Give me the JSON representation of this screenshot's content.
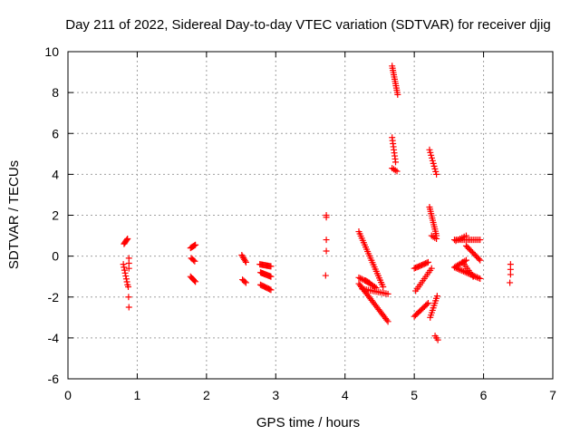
{
  "chart_data": {
    "type": "scatter",
    "title": "Day 211 of 2022, Sidereal Day-to-day VTEC variation (SDTVAR) for receiver djig",
    "xlabel": "GPS time / hours",
    "ylabel": "SDTVAR / TECUs",
    "xlim": [
      0,
      7
    ],
    "ylim": [
      -6,
      10
    ],
    "xticks": [
      "0",
      "1",
      "2",
      "3",
      "4",
      "5",
      "6",
      "7"
    ],
    "yticks": [
      "-6",
      "-4",
      "-2",
      "0",
      "2",
      "4",
      "6",
      "8",
      "10"
    ],
    "grid": true,
    "marker": "plus",
    "color": "#ff0000",
    "segments": [
      {
        "x0": 0.81,
        "y0": 0.6,
        "x1": 0.86,
        "y1": 0.85,
        "n": 6
      },
      {
        "x0": 0.8,
        "y0": -0.4,
        "x1": 0.86,
        "y1": -1.4,
        "n": 8
      },
      {
        "x0": 0.88,
        "y0": -0.1,
        "x1": 0.88,
        "y1": -0.6,
        "n": 3
      },
      {
        "x0": 0.87,
        "y0": -1.5,
        "x1": 0.88,
        "y1": -2.5,
        "n": 3
      },
      {
        "x0": 1.77,
        "y0": 0.4,
        "x1": 1.84,
        "y1": 0.55,
        "n": 6
      },
      {
        "x0": 1.78,
        "y0": -0.1,
        "x1": 1.83,
        "y1": -0.25,
        "n": 4
      },
      {
        "x0": 1.77,
        "y0": -1.0,
        "x1": 1.84,
        "y1": -1.25,
        "n": 6
      },
      {
        "x0": 2.51,
        "y0": 0.05,
        "x1": 2.57,
        "y1": -0.3,
        "n": 6
      },
      {
        "x0": 2.52,
        "y0": -1.15,
        "x1": 2.57,
        "y1": -1.3,
        "n": 4
      },
      {
        "x0": 2.77,
        "y0": -0.4,
        "x1": 2.93,
        "y1": -0.5,
        "n": 12
      },
      {
        "x0": 2.78,
        "y0": -0.8,
        "x1": 2.93,
        "y1": -1.0,
        "n": 12
      },
      {
        "x0": 2.78,
        "y0": -1.4,
        "x1": 2.93,
        "y1": -1.65,
        "n": 10
      },
      {
        "x0": 3.73,
        "y0": 2.0,
        "x1": 3.73,
        "y1": 1.9,
        "n": 2
      },
      {
        "x0": 3.73,
        "y0": 0.8,
        "x1": 3.73,
        "y1": 0.8,
        "n": 1
      },
      {
        "x0": 3.73,
        "y0": 0.25,
        "x1": 3.73,
        "y1": 0.25,
        "n": 1
      },
      {
        "x0": 3.72,
        "y0": -0.95,
        "x1": 3.72,
        "y1": -0.95,
        "n": 1
      },
      {
        "x0": 4.2,
        "y0": 1.2,
        "x1": 4.55,
        "y1": -1.5,
        "n": 26
      },
      {
        "x0": 4.2,
        "y0": -1.05,
        "x1": 4.35,
        "y1": -1.3,
        "n": 8
      },
      {
        "x0": 4.2,
        "y0": -1.35,
        "x1": 4.62,
        "y1": -3.2,
        "n": 26
      },
      {
        "x0": 4.25,
        "y0": -1.6,
        "x1": 4.62,
        "y1": -1.85,
        "n": 14
      },
      {
        "x0": 4.3,
        "y0": -1.2,
        "x1": 4.45,
        "y1": -1.55,
        "n": 8
      },
      {
        "x0": 4.68,
        "y0": 9.3,
        "x1": 4.76,
        "y1": 7.9,
        "n": 14
      },
      {
        "x0": 4.68,
        "y0": 5.8,
        "x1": 4.73,
        "y1": 4.6,
        "n": 9
      },
      {
        "x0": 4.68,
        "y0": 4.3,
        "x1": 4.75,
        "y1": 4.15,
        "n": 4
      },
      {
        "x0": 5.0,
        "y0": -0.6,
        "x1": 5.2,
        "y1": -0.3,
        "n": 12
      },
      {
        "x0": 5.02,
        "y0": -1.7,
        "x1": 5.25,
        "y1": -0.6,
        "n": 12
      },
      {
        "x0": 5.0,
        "y0": -2.95,
        "x1": 5.2,
        "y1": -2.3,
        "n": 12
      },
      {
        "x0": 5.22,
        "y0": 5.2,
        "x1": 5.32,
        "y1": 4.0,
        "n": 10
      },
      {
        "x0": 5.22,
        "y0": 2.4,
        "x1": 5.32,
        "y1": 1.0,
        "n": 14
      },
      {
        "x0": 5.25,
        "y0": 1.0,
        "x1": 5.32,
        "y1": 0.85,
        "n": 4
      },
      {
        "x0": 5.23,
        "y0": -3.0,
        "x1": 5.33,
        "y1": -1.95,
        "n": 10
      },
      {
        "x0": 5.3,
        "y0": -3.9,
        "x1": 5.34,
        "y1": -4.1,
        "n": 3
      },
      {
        "x0": 5.58,
        "y0": 0.8,
        "x1": 5.95,
        "y1": 0.8,
        "n": 16
      },
      {
        "x0": 5.6,
        "y0": 0.75,
        "x1": 5.75,
        "y1": 1.0,
        "n": 6
      },
      {
        "x0": 5.75,
        "y0": 0.5,
        "x1": 5.95,
        "y1": -0.2,
        "n": 12
      },
      {
        "x0": 5.6,
        "y0": -0.5,
        "x1": 5.75,
        "y1": -0.2,
        "n": 8
      },
      {
        "x0": 5.58,
        "y0": -0.55,
        "x1": 5.95,
        "y1": -1.1,
        "n": 18
      },
      {
        "x0": 5.7,
        "y0": -0.3,
        "x1": 5.85,
        "y1": -1.0,
        "n": 8
      },
      {
        "x0": 6.39,
        "y0": -0.4,
        "x1": 6.39,
        "y1": -0.9,
        "n": 3
      },
      {
        "x0": 6.38,
        "y0": -1.3,
        "x1": 6.38,
        "y1": -1.3,
        "n": 1
      }
    ]
  }
}
